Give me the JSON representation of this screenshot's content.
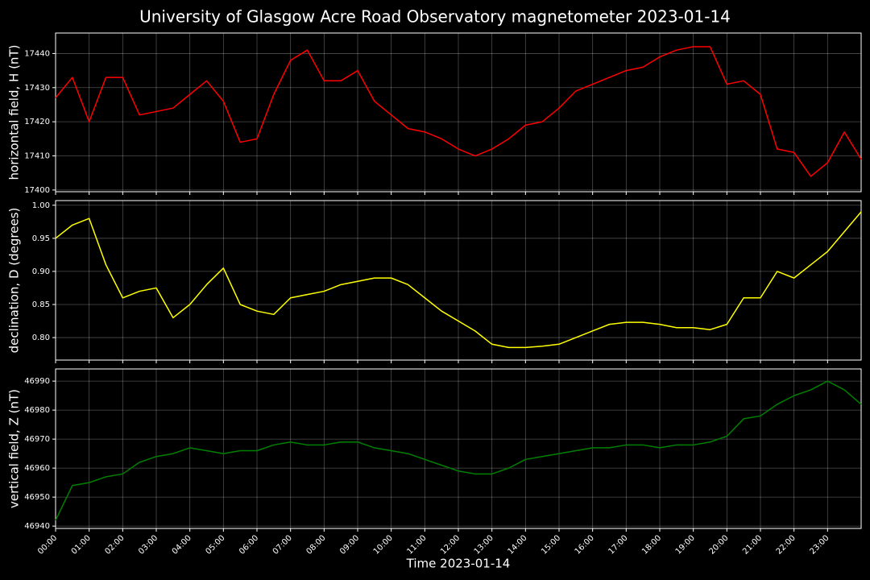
{
  "chart_data": [
    {
      "type": "line",
      "title": "University of Glasgow Acre Road Observatory magnetometer 2023-01-14",
      "ylabel": "horizontal field, H (nT)",
      "color": "#ff0000",
      "grid": true,
      "xlim": [
        0,
        24
      ],
      "ylim": [
        17399.5,
        17446
      ],
      "yticks": [
        17400,
        17410,
        17420,
        17430,
        17440
      ],
      "x": [
        0,
        0.5,
        1,
        1.5,
        2,
        2.5,
        3,
        3.5,
        4,
        4.5,
        5,
        5.5,
        6,
        6.5,
        7,
        7.5,
        8,
        8.5,
        9,
        9.5,
        10,
        10.5,
        11,
        11.5,
        12,
        12.5,
        13,
        13.5,
        14,
        14.5,
        15,
        15.5,
        16,
        16.5,
        17,
        17.5,
        18,
        18.5,
        19,
        19.5,
        20,
        20.5,
        21,
        21.5,
        22,
        22.5,
        23,
        23.5,
        24
      ],
      "values": [
        17427,
        17433,
        17420,
        17433,
        17433,
        17422,
        17423,
        17424,
        17428,
        17432,
        17426,
        17414,
        17415,
        17428,
        17438,
        17441,
        17432,
        17432,
        17435,
        17426,
        17422,
        17418,
        17417,
        17415,
        17412,
        17410,
        17412,
        17415,
        17419,
        17420,
        17424,
        17429,
        17431,
        17433,
        17435,
        17436,
        17439,
        17441,
        17442,
        17442,
        17431,
        17432,
        17428,
        17412,
        17411,
        17404,
        17408,
        17417,
        17409
      ]
    },
    {
      "type": "line",
      "ylabel": "declination, D (degrees)",
      "color": "#ffff00",
      "grid": true,
      "xlim": [
        0,
        24
      ],
      "ylim": [
        0.766,
        1.007
      ],
      "yticks": [
        {
          "value": 0.8,
          "label": "0.80"
        },
        0.85,
        {
          "value": 0.9,
          "label": "0.90"
        },
        0.95,
        {
          "value": 1.0,
          "label": "1.00"
        }
      ],
      "x": [
        0,
        0.5,
        1,
        1.5,
        2,
        2.5,
        3,
        3.5,
        4,
        4.5,
        5,
        5.5,
        6,
        6.5,
        7,
        7.5,
        8,
        8.5,
        9,
        9.5,
        10,
        10.5,
        11,
        11.5,
        12,
        12.5,
        13,
        13.5,
        14,
        14.5,
        15,
        15.5,
        16,
        16.5,
        17,
        17.5,
        18,
        18.5,
        19,
        19.5,
        20,
        20.5,
        21,
        21.5,
        22,
        22.5,
        23,
        23.5,
        24
      ],
      "values": [
        0.95,
        0.97,
        0.98,
        0.91,
        0.86,
        0.87,
        0.875,
        0.83,
        0.85,
        0.88,
        0.905,
        0.85,
        0.84,
        0.835,
        0.86,
        0.865,
        0.87,
        0.88,
        0.885,
        0.89,
        0.89,
        0.88,
        0.86,
        0.84,
        0.825,
        0.81,
        0.79,
        0.785,
        0.785,
        0.787,
        0.79,
        0.8,
        0.81,
        0.82,
        0.823,
        0.823,
        0.82,
        0.815,
        0.815,
        0.812,
        0.82,
        0.86,
        0.86,
        0.9,
        0.89,
        0.91,
        0.93,
        0.96,
        0.99
      ]
    },
    {
      "type": "line",
      "ylabel": "vertical field, Z (nT)",
      "xlabel": "Time 2023-01-14",
      "color": "#008000",
      "grid": true,
      "xlim": [
        0,
        24
      ],
      "ylim": [
        46939.2,
        46994.2
      ],
      "yticks": [
        46940,
        46950,
        46960,
        46970,
        46980,
        46990
      ],
      "xticks": [
        {
          "value": 0,
          "label": "00:00"
        },
        {
          "value": 1,
          "label": "01:00"
        },
        {
          "value": 2,
          "label": "02:00"
        },
        {
          "value": 3,
          "label": "03:00"
        },
        {
          "value": 4,
          "label": "04:00"
        },
        {
          "value": 5,
          "label": "05:00"
        },
        {
          "value": 6,
          "label": "06:00"
        },
        {
          "value": 7,
          "label": "07:00"
        },
        {
          "value": 8,
          "label": "08:00"
        },
        {
          "value": 9,
          "label": "09:00"
        },
        {
          "value": 10,
          "label": "10:00"
        },
        {
          "value": 11,
          "label": "11:00"
        },
        {
          "value": 12,
          "label": "12:00"
        },
        {
          "value": 13,
          "label": "13:00"
        },
        {
          "value": 14,
          "label": "14:00"
        },
        {
          "value": 15,
          "label": "15:00"
        },
        {
          "value": 16,
          "label": "16:00"
        },
        {
          "value": 17,
          "label": "17:00"
        },
        {
          "value": 18,
          "label": "18:00"
        },
        {
          "value": 19,
          "label": "19:00"
        },
        {
          "value": 20,
          "label": "20:00"
        },
        {
          "value": 21,
          "label": "21:00"
        },
        {
          "value": 22,
          "label": "22:00"
        },
        {
          "value": 23,
          "label": "23:00"
        }
      ],
      "x": [
        0,
        0.5,
        1,
        1.5,
        2,
        2.5,
        3,
        3.5,
        4,
        4.5,
        5,
        5.5,
        6,
        6.5,
        7,
        7.5,
        8,
        8.5,
        9,
        9.5,
        10,
        10.5,
        11,
        11.5,
        12,
        12.5,
        13,
        13.5,
        14,
        14.5,
        15,
        15.5,
        16,
        16.5,
        17,
        17.5,
        18,
        18.5,
        19,
        19.5,
        20,
        20.5,
        21,
        21.5,
        22,
        22.5,
        23,
        23.5,
        24
      ],
      "values": [
        46942,
        46954,
        46955,
        46957,
        46958,
        46962,
        46964,
        46965,
        46967,
        46966,
        46965,
        46966,
        46966,
        46968,
        46969,
        46968,
        46968,
        46969,
        46969,
        46967,
        46966,
        46965,
        46963,
        46961,
        46959,
        46958,
        46958,
        46960,
        46963,
        46964,
        46965,
        46966,
        46967,
        46967,
        46968,
        46968,
        46967,
        46968,
        46968,
        46969,
        46971,
        46977,
        46978,
        46982,
        46985,
        46987,
        46990,
        46987,
        46982
      ]
    }
  ]
}
